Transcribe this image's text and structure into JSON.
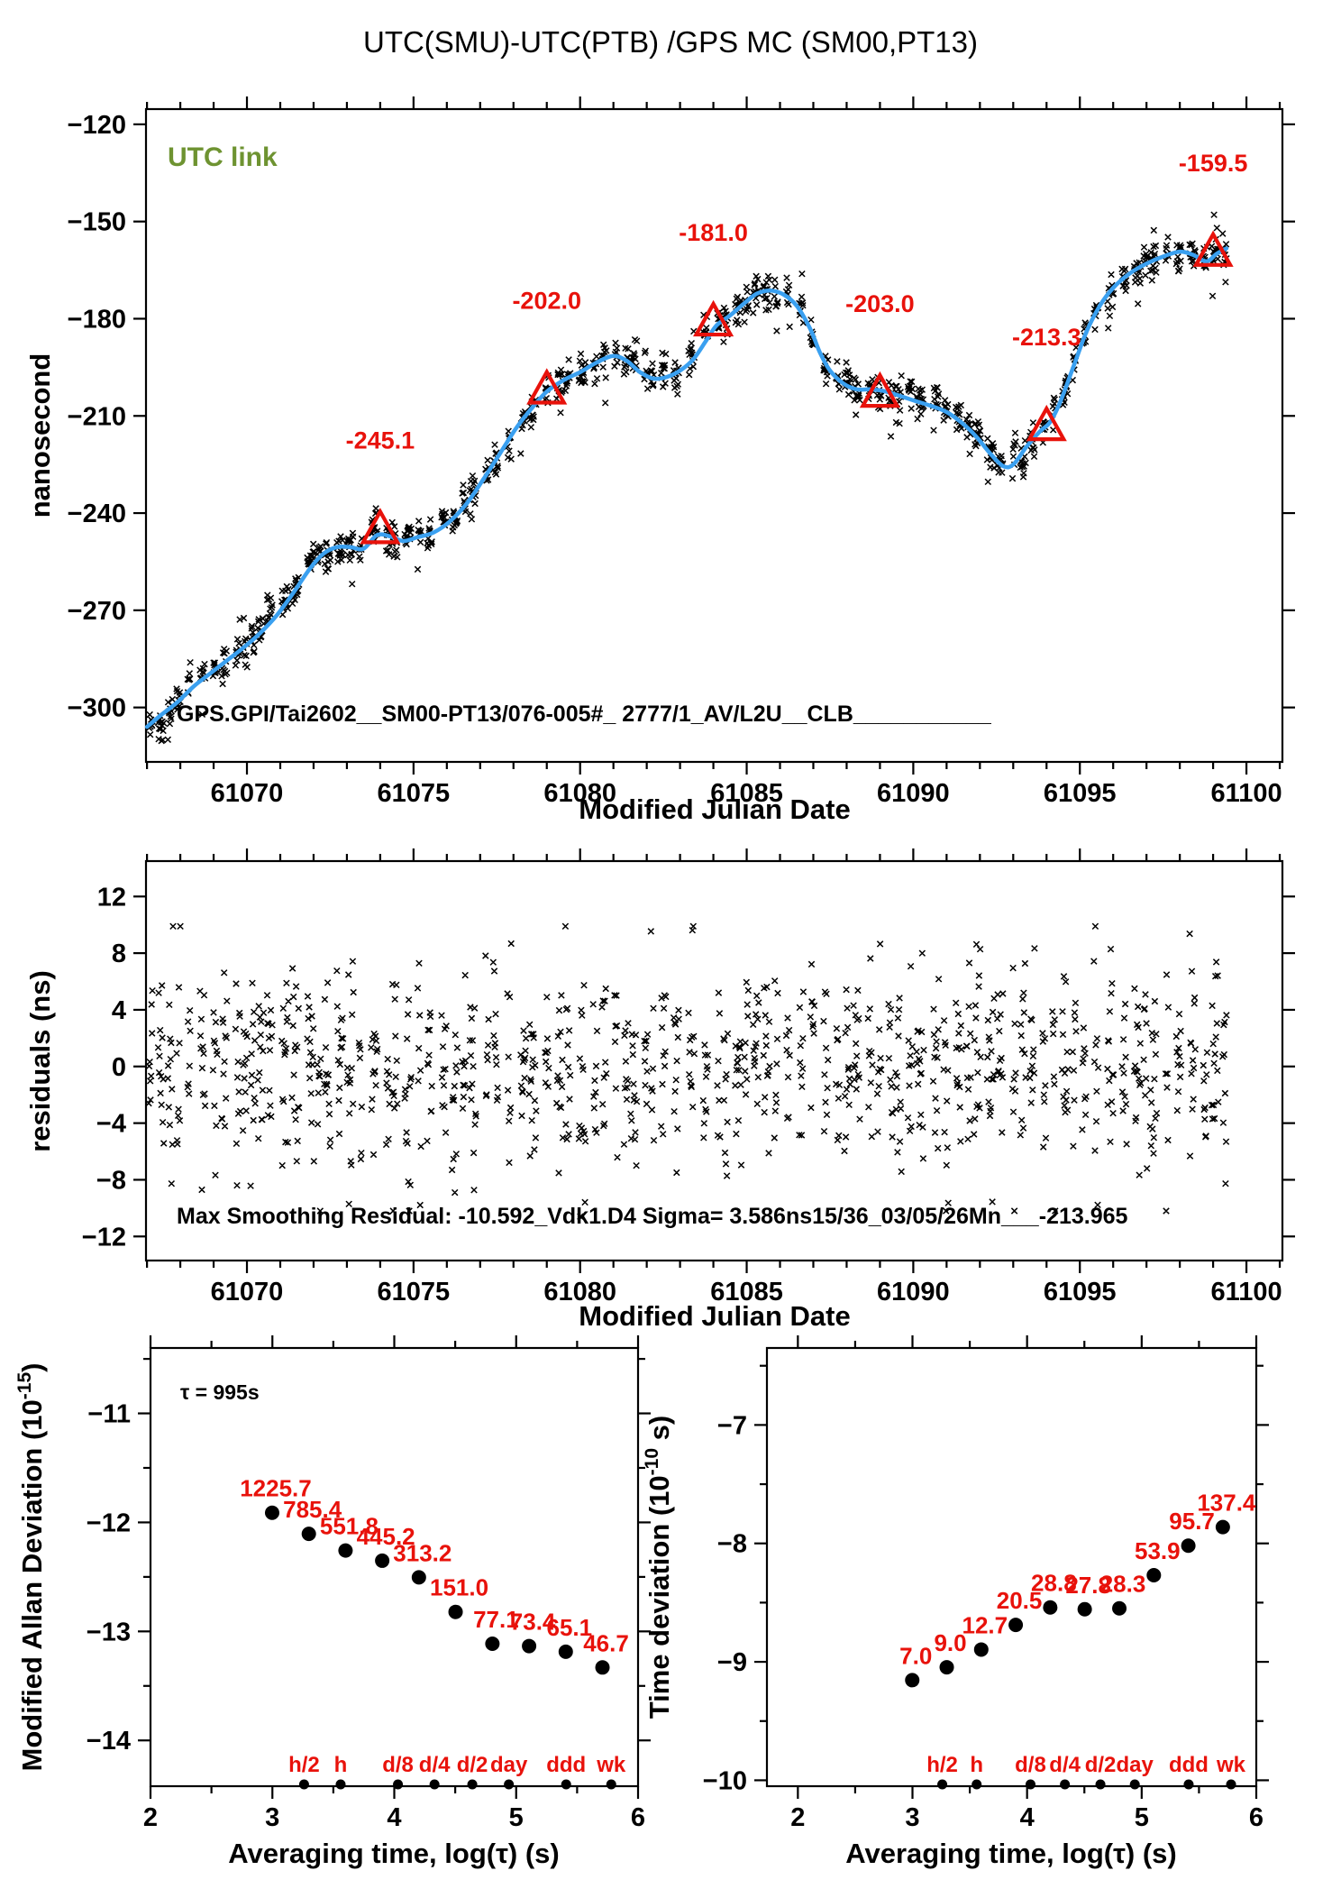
{
  "title": "UTC(SMU)-UTC(PTB)  /GPS  MC  (SM00,PT13)",
  "colors": {
    "red": "#e8120b",
    "blue": "#3aa0f0",
    "green": "#6e9331",
    "marker": "#000000"
  },
  "chart_data": {
    "main": {
      "type": "scatter+line",
      "xlabel": "Modified Julian Date",
      "ylabel": "nanosecond",
      "corner_label": "UTC link",
      "annotation": "GPS.GPI/Tai2602__SM00-PT13/076-005#_  2777/1_AV/L2U__CLB___________",
      "xlim": [
        61066.97,
        61101.08
      ],
      "ylim": [
        -316.8,
        -115.3
      ],
      "xticks": [
        61070,
        61075,
        61080,
        61085,
        61090,
        61095,
        61100
      ],
      "xminor_step": 1,
      "yticks": [
        -300,
        -270,
        -240,
        -210,
        -180,
        -150,
        -120
      ],
      "smoothed_line": [
        [
          61067.0,
          -306
        ],
        [
          61067.4,
          -302.5
        ],
        [
          61067.9,
          -298.5
        ],
        [
          61068.4,
          -293.5
        ],
        [
          61068.9,
          -289.5
        ],
        [
          61069.4,
          -285.5
        ],
        [
          61069.9,
          -281.5
        ],
        [
          61070.4,
          -277
        ],
        [
          61070.9,
          -271.5
        ],
        [
          61071.4,
          -264.5
        ],
        [
          61071.9,
          -257
        ],
        [
          61072.3,
          -252.5
        ],
        [
          61072.7,
          -250.5
        ],
        [
          61073.1,
          -250.5
        ],
        [
          61073.5,
          -251
        ],
        [
          61073.9,
          -246.8
        ],
        [
          61074.3,
          -247.2
        ],
        [
          61074.7,
          -248.6
        ],
        [
          61075.1,
          -247.5
        ],
        [
          61075.6,
          -246
        ],
        [
          61076.1,
          -242.5
        ],
        [
          61076.6,
          -237
        ],
        [
          61077.1,
          -229.5
        ],
        [
          61077.6,
          -221.5
        ],
        [
          61078.1,
          -213.5
        ],
        [
          61078.6,
          -207
        ],
        [
          61079.0,
          -202.5
        ],
        [
          61079.5,
          -199
        ],
        [
          61080.0,
          -196.5
        ],
        [
          61080.5,
          -193.5
        ],
        [
          61081.0,
          -191.5
        ],
        [
          61081.4,
          -193
        ],
        [
          61081.8,
          -196.5
        ],
        [
          61082.2,
          -198.5
        ],
        [
          61082.6,
          -198
        ],
        [
          61083.0,
          -196
        ],
        [
          61083.4,
          -192.5
        ],
        [
          61083.8,
          -186.5
        ],
        [
          61084.1,
          -182
        ],
        [
          61084.5,
          -179
        ],
        [
          61084.9,
          -175.5
        ],
        [
          61085.3,
          -172.3
        ],
        [
          61085.7,
          -171.3
        ],
        [
          61086.1,
          -172.5
        ],
        [
          61086.5,
          -176
        ],
        [
          61086.9,
          -183
        ],
        [
          61087.2,
          -190.5
        ],
        [
          61087.5,
          -196
        ],
        [
          61087.9,
          -200
        ],
        [
          61088.3,
          -201.8
        ],
        [
          61088.7,
          -201.8
        ],
        [
          61089.1,
          -202.3
        ],
        [
          61089.5,
          -203.5
        ],
        [
          61090.0,
          -205.2
        ],
        [
          61090.5,
          -206.8
        ],
        [
          61091.0,
          -208.8
        ],
        [
          61091.5,
          -212.5
        ],
        [
          61091.9,
          -216.5
        ],
        [
          61092.3,
          -221.5
        ],
        [
          61092.7,
          -225.5
        ],
        [
          61093.0,
          -225
        ],
        [
          61093.4,
          -219.5
        ],
        [
          61093.8,
          -214.8
        ],
        [
          61094.1,
          -212
        ],
        [
          61094.4,
          -206
        ],
        [
          61094.8,
          -195
        ],
        [
          61095.2,
          -184
        ],
        [
          61095.6,
          -176
        ],
        [
          61096.0,
          -170.5
        ],
        [
          61096.5,
          -166
        ],
        [
          61097.0,
          -163
        ],
        [
          61097.5,
          -160.8
        ],
        [
          61098.0,
          -159.3
        ],
        [
          61098.4,
          -160.3
        ],
        [
          61098.8,
          -162.3
        ],
        [
          61099.1,
          -160
        ],
        [
          61099.4,
          -158.3
        ]
      ],
      "calibration_points": [
        {
          "mjd": 61074,
          "value": -245.1,
          "label": "-245.1"
        },
        {
          "mjd": 61079,
          "value": -202.0,
          "label": "-202.0"
        },
        {
          "mjd": 61084,
          "value": -181.0,
          "label": "-181.0"
        },
        {
          "mjd": 61089,
          "value": -203.0,
          "label": "-203.0"
        },
        {
          "mjd": 61094,
          "value": -213.3,
          "label": "-213.3"
        },
        {
          "mjd": 61099,
          "value": -159.5,
          "label": "-159.5"
        }
      ],
      "scatter_model": {
        "seed": 20250305,
        "noise_sigma_ns": 2.6,
        "cluster_sigma_ns": 1.3,
        "outlier_prob": 0.05,
        "x_start": 61067.05,
        "x_end": 61099.4
      }
    },
    "residuals": {
      "type": "scatter",
      "xlabel": "Modified Julian Date",
      "ylabel": "residuals (ns)",
      "annotation": "Max Smoothing Residual: -10.592_Vdk1.D4  Sigma= 3.586ns15/36_03/05/26Mn___-213.965",
      "xlim": [
        61066.97,
        61101.08
      ],
      "ylim": [
        -13.7,
        14.5
      ],
      "xticks": [
        61070,
        61075,
        61080,
        61085,
        61090,
        61095,
        61100
      ],
      "xminor_step": 1,
      "yticks": [
        -12,
        -8,
        -4,
        0,
        4,
        8,
        12
      ],
      "sigma_ns": 3.586,
      "max_residual": -10.592,
      "max_residual_mjd": 61080.0
    },
    "mdev": {
      "type": "scatter",
      "xlabel": "Averaging time, log(τ) (s)",
      "ylabel_parts": {
        "pre": "Modified Allan Deviation (10",
        "sup": "-15",
        "post": ")"
      },
      "tau_annotation": "τ = 995s",
      "xlim": [
        2,
        6
      ],
      "ylim": [
        -14.42,
        -10.4
      ],
      "xticks": [
        2,
        3,
        4,
        5,
        6
      ],
      "xminor_step": 0.5,
      "yticks": [
        -11,
        -12,
        -13,
        -14
      ],
      "yminor_step": 0.5,
      "log_tau": [
        2.998,
        3.299,
        3.6,
        3.901,
        4.202,
        4.503,
        4.805,
        5.106,
        5.407,
        5.708
      ],
      "values": [
        1225.7,
        785.4,
        551.8,
        445.2,
        313.2,
        151.0,
        77.1,
        73.4,
        65.1,
        46.7
      ],
      "value_exponent": -15,
      "time_marks": [
        {
          "label": "h/2",
          "log_tau": 3.26
        },
        {
          "label": "h",
          "log_tau": 3.56
        },
        {
          "label": "d/8",
          "log_tau": 4.03
        },
        {
          "label": "d/4",
          "log_tau": 4.33
        },
        {
          "label": "d/2",
          "log_tau": 4.64
        },
        {
          "label": "day",
          "log_tau": 4.94
        },
        {
          "label": "ddd",
          "log_tau": 5.41
        },
        {
          "label": "wk",
          "log_tau": 5.78
        }
      ]
    },
    "tdev": {
      "type": "scatter",
      "xlabel": "Averaging time, log(τ) (s)",
      "ylabel_parts": {
        "pre": "Time deviation (10",
        "sup": "-10",
        "post": " s)"
      },
      "xlim": [
        1.73,
        6.0
      ],
      "ylim": [
        -10.05,
        -6.35
      ],
      "xticks": [
        2,
        3,
        4,
        5,
        6
      ],
      "xminor_step": 0.5,
      "yticks": [
        -7,
        -8,
        -9,
        -10
      ],
      "yminor_step": 0.5,
      "log_tau": [
        2.998,
        3.299,
        3.6,
        3.901,
        4.202,
        4.503,
        4.805,
        5.106,
        5.407,
        5.708
      ],
      "values": [
        7.0,
        9.0,
        12.7,
        20.5,
        28.8,
        27.8,
        28.3,
        53.9,
        95.7,
        137.4
      ],
      "value_exponent": -10,
      "time_marks": [
        {
          "label": "h/2",
          "log_tau": 3.26
        },
        {
          "label": "h",
          "log_tau": 3.56
        },
        {
          "label": "d/8",
          "log_tau": 4.03
        },
        {
          "label": "d/4",
          "log_tau": 4.33
        },
        {
          "label": "d/2",
          "log_tau": 4.64
        },
        {
          "label": "day",
          "log_tau": 4.94
        },
        {
          "label": "ddd",
          "log_tau": 5.41
        },
        {
          "label": "wk",
          "log_tau": 5.78
        }
      ]
    }
  }
}
